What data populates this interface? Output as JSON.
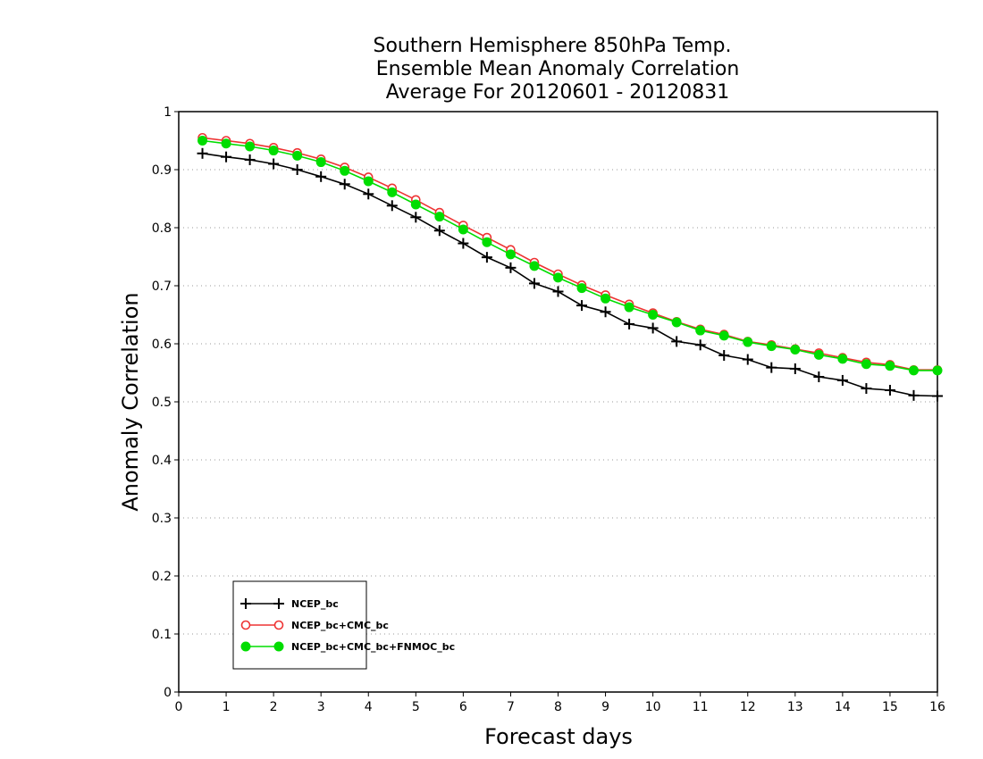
{
  "chart_data": {
    "type": "line",
    "title_lines": [
      "Southern Hemisphere 850hPa Temp.",
      "Ensemble Mean Anomaly Correlation",
      "Average For 20120601 - 20120831"
    ],
    "xlabel": "Forecast days",
    "ylabel": "Anomaly Correlation",
    "xlim": [
      0,
      16
    ],
    "ylim": [
      0,
      1
    ],
    "x_ticks": [
      "0",
      "1",
      "2",
      "3",
      "4",
      "5",
      "6",
      "7",
      "8",
      "9",
      "10",
      "11",
      "12",
      "13",
      "14",
      "15",
      "16"
    ],
    "y_ticks": [
      "0",
      "0.1",
      "0.2",
      "0.3",
      "0.4",
      "0.5",
      "0.6",
      "0.7",
      "0.8",
      "0.9",
      "1"
    ],
    "grid": "horizontal dotted",
    "legend_position": "bottom-left",
    "x": [
      0.5,
      1,
      1.5,
      2,
      2.5,
      3,
      3.5,
      4,
      4.5,
      5,
      5.5,
      6,
      6.5,
      7,
      7.5,
      8,
      8.5,
      9,
      9.5,
      10,
      10.5,
      11,
      11.5,
      12,
      12.5,
      13,
      13.5,
      14,
      14.5,
      15,
      15.5,
      16
    ],
    "series": [
      {
        "name": "NCEP_bc",
        "color": "#000000",
        "marker": "plus",
        "values": [
          0.928,
          0.922,
          0.917,
          0.91,
          0.9,
          0.888,
          0.875,
          0.858,
          0.838,
          0.818,
          0.795,
          0.773,
          0.749,
          0.731,
          0.704,
          0.69,
          0.666,
          0.655,
          0.634,
          0.627,
          0.604,
          0.598,
          0.58,
          0.573,
          0.559,
          0.557,
          0.543,
          0.537,
          0.523,
          0.52,
          0.511,
          0.51
        ]
      },
      {
        "name": "NCEP_bc+CMC_bc",
        "color": "#ee3333",
        "marker": "open-circle",
        "values": [
          0.955,
          0.95,
          0.945,
          0.938,
          0.929,
          0.918,
          0.904,
          0.887,
          0.868,
          0.848,
          0.826,
          0.804,
          0.783,
          0.762,
          0.74,
          0.72,
          0.701,
          0.684,
          0.668,
          0.653,
          0.638,
          0.625,
          0.616,
          0.604,
          0.598,
          0.591,
          0.584,
          0.576,
          0.568,
          0.564,
          0.555,
          0.555
        ]
      },
      {
        "name": "NCEP_bc+CMC_bc+FNMOC_bc",
        "color": "#00dd00",
        "marker": "filled-circle",
        "values": [
          0.95,
          0.945,
          0.94,
          0.933,
          0.924,
          0.913,
          0.898,
          0.88,
          0.861,
          0.84,
          0.819,
          0.797,
          0.775,
          0.754,
          0.734,
          0.714,
          0.696,
          0.678,
          0.663,
          0.65,
          0.637,
          0.623,
          0.614,
          0.603,
          0.596,
          0.59,
          0.581,
          0.574,
          0.565,
          0.562,
          0.554,
          0.554
        ]
      }
    ]
  }
}
